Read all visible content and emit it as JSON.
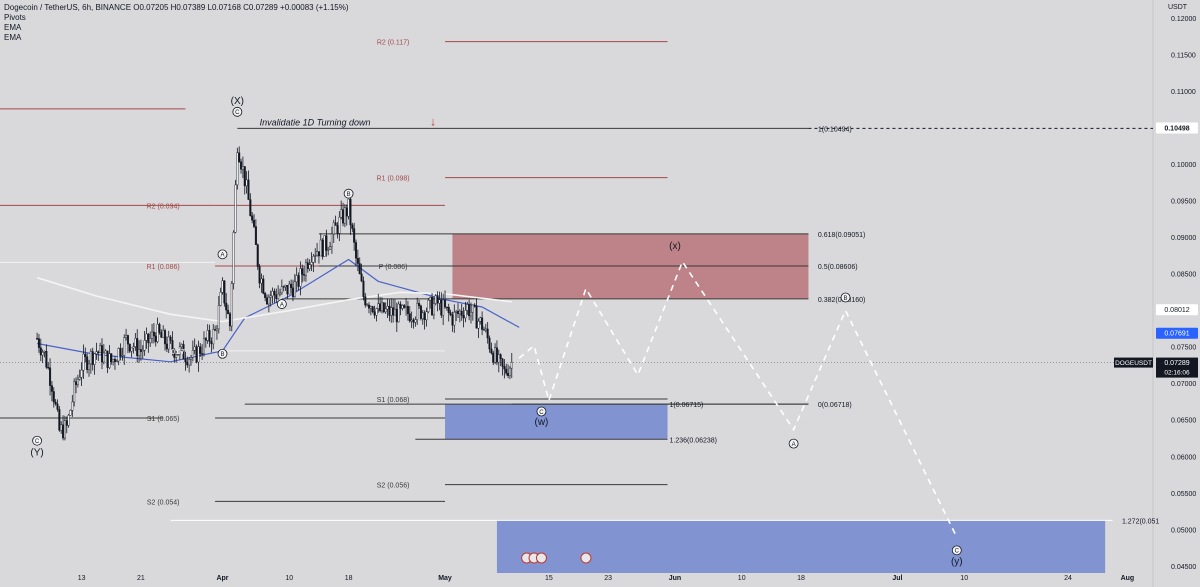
{
  "header": {
    "symbol_line": "Dogecoin / TetherUS, 6h, BINANCE  O0.07205  H0.07389  L0.07168  C0.07289  +0.00083 (+1.15%)",
    "indicators": [
      "Pivots",
      "EMA",
      "EMA"
    ]
  },
  "chart_data": {
    "type": "candlestick",
    "symbol": "DOGEUSDT",
    "interval": "6h",
    "exchange": "BINANCE",
    "ohlc": {
      "open": 0.07205,
      "high": 0.07389,
      "low": 0.07168,
      "close": 0.07289,
      "change": "+0.00083 (+1.15%)"
    },
    "currency_label": "USDT",
    "y_ticks": [
      "0.12000",
      "0.11500",
      "0.11000",
      "0.10500",
      "0.10000",
      "0.09500",
      "0.09000",
      "0.08500",
      "0.08000",
      "0.07500",
      "0.07000",
      "0.06500",
      "0.06000",
      "0.05500",
      "0.05000",
      "0.04500"
    ],
    "ylim": [
      0.0441,
      0.1225
    ],
    "x_ticks": [
      "13",
      "21",
      "Apr",
      "10",
      "18",
      "May",
      "15",
      "23",
      "Jun",
      "10",
      "18",
      "Jul",
      "10",
      "24",
      "Aug"
    ],
    "price_series": [
      [
        "2023-03-07",
        0.0762
      ],
      [
        "2023-03-08",
        0.074
      ],
      [
        "2023-03-09",
        0.07
      ],
      [
        "2023-03-10",
        0.0635
      ],
      [
        "2023-03-11",
        0.064
      ],
      [
        "2023-03-12",
        0.069
      ],
      [
        "2023-03-13",
        0.0725
      ],
      [
        "2023-03-15",
        0.0745
      ],
      [
        "2023-03-17",
        0.073
      ],
      [
        "2023-03-19",
        0.076
      ],
      [
        "2023-03-21",
        0.0745
      ],
      [
        "2023-03-23",
        0.077
      ],
      [
        "2023-03-25",
        0.075
      ],
      [
        "2023-03-27",
        0.074
      ],
      [
        "2023-03-28",
        0.0735
      ],
      [
        "2023-03-30",
        0.076
      ],
      [
        "2023-03-31",
        0.077
      ],
      [
        "2023-04-01",
        0.083
      ],
      [
        "2023-04-02",
        0.078
      ],
      [
        "2023-04-03",
        0.103
      ],
      [
        "2023-04-04",
        0.098
      ],
      [
        "2023-04-05",
        0.092
      ],
      [
        "2023-04-06",
        0.085
      ],
      [
        "2023-04-07",
        0.082
      ],
      [
        "2023-04-09",
        0.0825
      ],
      [
        "2023-04-11",
        0.0835
      ],
      [
        "2023-04-13",
        0.088
      ],
      [
        "2023-04-15",
        0.089
      ],
      [
        "2023-04-17",
        0.0925
      ],
      [
        "2023-04-18",
        0.094
      ],
      [
        "2023-04-19",
        0.087
      ],
      [
        "2023-04-20",
        0.082
      ],
      [
        "2023-04-22",
        0.08
      ],
      [
        "2023-04-25",
        0.0795
      ],
      [
        "2023-04-28",
        0.08
      ],
      [
        "2023-04-30",
        0.081
      ],
      [
        "2023-05-02",
        0.079
      ],
      [
        "2023-05-04",
        0.0805
      ],
      [
        "2023-05-06",
        0.078
      ],
      [
        "2023-05-08",
        0.073
      ],
      [
        "2023-05-09",
        0.0715
      ],
      [
        "2023-05-10",
        0.0729
      ]
    ],
    "ema_series": [
      {
        "name": "EMA",
        "color": "#4a63c8",
        "points": [
          [
            "2023-03-07",
            0.0755
          ],
          [
            "2023-03-15",
            0.074
          ],
          [
            "2023-03-25",
            0.073
          ],
          [
            "2023-04-01",
            0.0745
          ],
          [
            "2023-04-04",
            0.079
          ],
          [
            "2023-04-10",
            0.082
          ],
          [
            "2023-04-18",
            0.087
          ],
          [
            "2023-04-22",
            0.084
          ],
          [
            "2023-05-01",
            0.0815
          ],
          [
            "2023-05-06",
            0.0805
          ],
          [
            "2023-05-11",
            0.0777
          ]
        ]
      },
      {
        "name": "EMA",
        "color": "#f4f4f4",
        "points": [
          [
            "2023-03-07",
            0.0845
          ],
          [
            "2023-03-15",
            0.082
          ],
          [
            "2023-03-25",
            0.0795
          ],
          [
            "2023-04-01",
            0.0785
          ],
          [
            "2023-04-10",
            0.08
          ],
          [
            "2023-04-18",
            0.0815
          ],
          [
            "2023-04-25",
            0.0825
          ],
          [
            "2023-05-01",
            0.0823
          ],
          [
            "2023-05-10",
            0.0812
          ]
        ]
      }
    ],
    "pivot_levels": [
      {
        "label": "R2 (0.117)",
        "value": 0.1168,
        "from": "2023-05-01",
        "to": "2023-05-31",
        "color": "#a34a4a",
        "label_at": "2023-04-24"
      },
      {
        "label": "R1 (0.098)",
        "value": 0.0982,
        "from": "2023-05-01",
        "to": "2023-05-31",
        "color": "#a34a4a",
        "label_at": "2023-04-24"
      },
      {
        "label": "P (0.086)",
        "value": 0.0861,
        "from": "2023-05-01",
        "to": "2023-05-31",
        "color": "#3a3a3a",
        "label_at": "2023-04-24"
      },
      {
        "label": "S1 (0.068)",
        "value": 0.0679,
        "from": "2023-05-01",
        "to": "2023-05-31",
        "color": "#3a3a3a",
        "label_at": "2023-04-24"
      },
      {
        "label": "S2 (0.056)",
        "value": 0.0562,
        "from": "2023-05-01",
        "to": "2023-05-31",
        "color": "#3a3a3a",
        "label_at": "2023-04-24"
      },
      {
        "label": "R2 (0.094)",
        "value": 0.0944,
        "from": "2023-03-31",
        "to": "2023-05-01",
        "color": "#a34a4a",
        "label_at": "2023-03-24"
      },
      {
        "label": "R1 (0.086)",
        "value": 0.0861,
        "from": "2023-03-31",
        "to": "2023-05-01",
        "color": "#a34a4a",
        "label_at": "2023-03-24"
      },
      {
        "label": "0.07",
        "value": 0.0745,
        "from": "2023-03-31",
        "to": "2023-05-01",
        "color": "#f2f2f2",
        "label_at": "2023-03-26"
      },
      {
        "label": "S1 (0.065)",
        "value": 0.0653,
        "from": "2023-03-31",
        "to": "2023-05-01",
        "color": "#3a3a3a",
        "label_at": "2023-03-24"
      },
      {
        "label": "S2 (0.054)",
        "value": 0.0539,
        "from": "2023-03-31",
        "to": "2023-05-01",
        "color": "#3a3a3a",
        "label_at": "2023-03-24"
      },
      {
        "label": "",
        "value": 0.1076,
        "from": "2023-03-02",
        "to": "2023-03-27",
        "color": "#a34a4a"
      },
      {
        "label": "",
        "value": 0.0944,
        "from": "2023-03-02",
        "to": "2023-03-31",
        "color": "#a34a4a"
      },
      {
        "label": "",
        "value": 0.0866,
        "from": "2023-03-02",
        "to": "2023-03-31",
        "color": "#f2f2f2"
      },
      {
        "label": "",
        "value": 0.0653,
        "from": "2023-03-02",
        "to": "2023-03-24",
        "color": "#3a3a3a"
      }
    ],
    "fib_levels": [
      {
        "label": "1(0.10494)",
        "value": 0.10494,
        "from": "2023-04-03",
        "to": "2023-06-19",
        "label_at": "2023-06-20"
      },
      {
        "label": "0.618(0.09051)",
        "value": 0.0905,
        "from": "2023-04-14",
        "to": "2023-06-19",
        "label_at": "2023-06-20"
      },
      {
        "label": "0.5(0.08606)",
        "value": 0.0861,
        "from": "2023-04-14",
        "to": "2023-06-19",
        "label_at": "2023-06-20"
      },
      {
        "label": "0.382(0.08160)",
        "value": 0.0816,
        "from": "2023-04-09",
        "to": "2023-06-19",
        "label_at": "2023-06-20"
      },
      {
        "label": "0(0.06718)",
        "value": 0.0672,
        "from": "2023-04-04",
        "to": "2023-06-19",
        "label_at": "2023-06-20"
      },
      {
        "label": "1(0.06715)",
        "value": 0.0672,
        "from": "2023-05-10",
        "to": "2023-06-19",
        "label_at": "2023-05-31"
      },
      {
        "label": "1.236(0.06238)",
        "value": 0.0624,
        "from": "2023-04-27",
        "to": "2023-05-31",
        "label_at": "2023-05-31"
      },
      {
        "label": "1.272(0.051",
        "value": 0.0513,
        "from": "2023-03-25",
        "to": "2023-07-30",
        "label_at": "2023-07-31"
      }
    ],
    "zones": [
      {
        "from": "2023-05-02",
        "to": "2023-06-19",
        "top": 0.0905,
        "bottom": 0.0816,
        "color": "#b7737a"
      },
      {
        "from": "2023-05-01",
        "to": "2023-05-31",
        "top": 0.0672,
        "bottom": 0.0624,
        "color": "#7187cf"
      },
      {
        "from": "2023-05-08",
        "to": "2023-07-29",
        "top": 0.0513,
        "bottom": 0.0441,
        "color": "#7187cf"
      }
    ],
    "projection_path": [
      [
        "2023-05-11",
        0.0735
      ],
      [
        "2023-05-13",
        0.0752
      ],
      [
        "2023-05-15",
        0.0677
      ],
      [
        "2023-05-20",
        0.083
      ],
      [
        "2023-05-27",
        0.0712
      ],
      [
        "2023-06-02",
        0.0867
      ],
      [
        "2023-06-17",
        0.0637
      ],
      [
        "2023-06-24",
        0.08
      ],
      [
        "2023-07-09",
        0.049
      ]
    ],
    "wave_labels": [
      {
        "text": "(X)",
        "date": "2023-04-03",
        "value": 0.1088,
        "circled": false
      },
      {
        "text": "C",
        "date": "2023-04-03",
        "value": 0.1072,
        "circled": true
      },
      {
        "text": "A",
        "date": "2023-04-01",
        "value": 0.0877,
        "circled": true
      },
      {
        "text": "B",
        "date": "2023-04-01",
        "value": 0.0741,
        "circled": true
      },
      {
        "text": "A",
        "date": "2023-04-09",
        "value": 0.0809,
        "circled": true
      },
      {
        "text": "B",
        "date": "2023-04-18",
        "value": 0.096,
        "circled": true
      },
      {
        "text": "C",
        "date": "2023-03-07",
        "value": 0.0622,
        "circled": true
      },
      {
        "text": "(Y)",
        "date": "2023-03-07",
        "value": 0.0607,
        "circled": false
      },
      {
        "text": "C",
        "date": "2023-05-14",
        "value": 0.0662,
        "circled": true
      },
      {
        "text": "(w)",
        "date": "2023-05-14",
        "value": 0.0649,
        "circled": false
      },
      {
        "text": "(x)",
        "date": "2023-06-01",
        "value": 0.089,
        "circled": false
      },
      {
        "text": "B",
        "date": "2023-06-24",
        "value": 0.0818,
        "circled": true
      },
      {
        "text": "A",
        "date": "2023-06-17",
        "value": 0.0618,
        "circled": true
      },
      {
        "text": "C",
        "date": "2023-07-09",
        "value": 0.0472,
        "circled": true
      },
      {
        "text": "(y)",
        "date": "2023-07-09",
        "value": 0.0458,
        "circled": false
      }
    ],
    "annotations": [
      {
        "text": "Invalidatie 1D   Turning down",
        "date": "2023-04-06",
        "value": 0.1052
      },
      {
        "text": "↓",
        "date": "2023-04-29",
        "value": 0.1052,
        "color": "#c0392b"
      }
    ],
    "price_tags": [
      {
        "text": "0.10498",
        "value": 0.10498,
        "bg": "#ffffff",
        "fg": "#131722",
        "bold": true
      },
      {
        "text": "0.08012",
        "value": 0.08012,
        "bg": "#ffffff",
        "fg": "#131722",
        "bold": false
      },
      {
        "text": "0.07691",
        "value": 0.07691,
        "bg": "#2962ff",
        "fg": "#ffffff",
        "bold": false
      },
      {
        "text": "0.07289",
        "value": 0.07289,
        "bg": "#131722",
        "fg": "#ffffff",
        "bold": false,
        "sub": "02:16:06",
        "symbol": "DOGEUSDT"
      }
    ],
    "dashed_price_line": 0.10494,
    "current_price_line": 0.07289,
    "event_markers": [
      "2023-05-12",
      "2023-05-13",
      "2023-05-14",
      "2023-05-20"
    ]
  }
}
